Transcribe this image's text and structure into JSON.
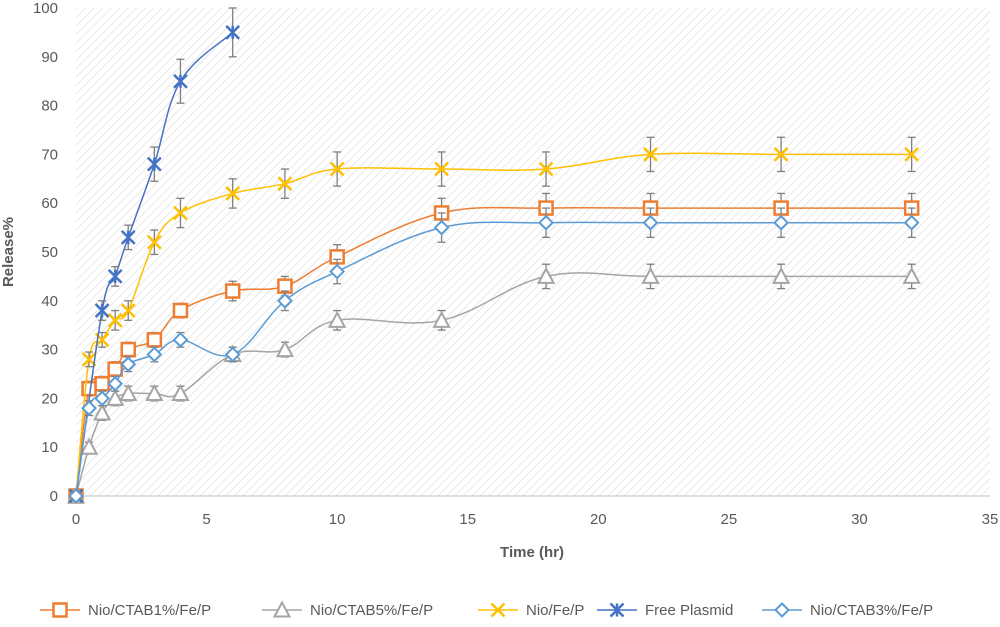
{
  "chart_data": {
    "type": "line",
    "title": "",
    "xlabel": "Time (hr)",
    "ylabel": "Release%",
    "xlim": [
      0,
      35
    ],
    "ylim": [
      0,
      100
    ],
    "x_ticks": [
      0,
      5,
      10,
      15,
      20,
      25,
      30,
      35
    ],
    "y_ticks": [
      0,
      10,
      20,
      30,
      40,
      50,
      60,
      70,
      80,
      90,
      100
    ],
    "grid": false,
    "plot_background": "diagonal-hatch",
    "legend_position": "bottom",
    "series": [
      {
        "name": "Nio/CTAB1%/Fe/P",
        "color": "#ED7D31",
        "marker": "square",
        "x": [
          0,
          0.5,
          1,
          1.5,
          2,
          3,
          4,
          6,
          8,
          10,
          14,
          18,
          22,
          27,
          32
        ],
        "y": [
          0,
          22,
          23,
          26,
          30,
          32,
          38,
          42,
          43,
          49,
          58,
          59,
          59,
          59,
          59
        ],
        "error": [
          0,
          1.5,
          1.5,
          1.5,
          1.5,
          1.5,
          1.5,
          2,
          2,
          2.5,
          3,
          3,
          3,
          3,
          3
        ]
      },
      {
        "name": "Nio/CTAB5%/Fe/P",
        "color": "#A5A5A5",
        "marker": "triangle",
        "x": [
          0,
          0.5,
          1,
          1.5,
          2,
          3,
          4,
          6,
          8,
          10,
          14,
          18,
          22,
          27,
          32
        ],
        "y": [
          0,
          10,
          17,
          20,
          21,
          21,
          21,
          29,
          30,
          36,
          36,
          45,
          45,
          45,
          45
        ],
        "error": [
          0,
          1,
          1.5,
          1.5,
          1.5,
          1.5,
          1.5,
          1.5,
          1.5,
          2,
          2,
          2.5,
          2.5,
          2.5,
          2.5
        ]
      },
      {
        "name": "Nio/Fe/P",
        "color": "#FFC000",
        "marker": "x",
        "x": [
          0,
          0.5,
          1,
          1.5,
          2,
          3,
          4,
          6,
          8,
          10,
          14,
          18,
          22,
          27,
          32
        ],
        "y": [
          0,
          28,
          32,
          36,
          38,
          52,
          58,
          62,
          64,
          67,
          67,
          67,
          70,
          70,
          70
        ],
        "error": [
          0,
          1.5,
          1.5,
          2,
          2,
          2.5,
          3,
          3,
          3,
          3.5,
          3.5,
          3.5,
          3.5,
          3.5,
          3.5
        ]
      },
      {
        "name": "Free Plasmid",
        "color": "#4472C4",
        "marker": "star",
        "x": [
          0,
          1,
          1.5,
          2,
          3,
          4,
          6
        ],
        "y": [
          0,
          38,
          45,
          53,
          68,
          85,
          95
        ],
        "error": [
          0,
          2,
          2,
          2.5,
          3.5,
          4.5,
          5
        ]
      },
      {
        "name": "Nio/CTAB3%/Fe/P",
        "color": "#5B9BD5",
        "marker": "diamond",
        "x": [
          0,
          0.5,
          1,
          1.5,
          2,
          3,
          4,
          6,
          8,
          10,
          14,
          18,
          22,
          27,
          32
        ],
        "y": [
          0,
          18,
          20,
          23,
          27,
          29,
          32,
          29,
          40,
          46,
          55,
          56,
          56,
          56,
          56
        ],
        "error": [
          0,
          1.5,
          1.5,
          1.5,
          1.5,
          1.5,
          1.5,
          1.5,
          2,
          2.5,
          3,
          3,
          3,
          3,
          3
        ]
      }
    ]
  }
}
